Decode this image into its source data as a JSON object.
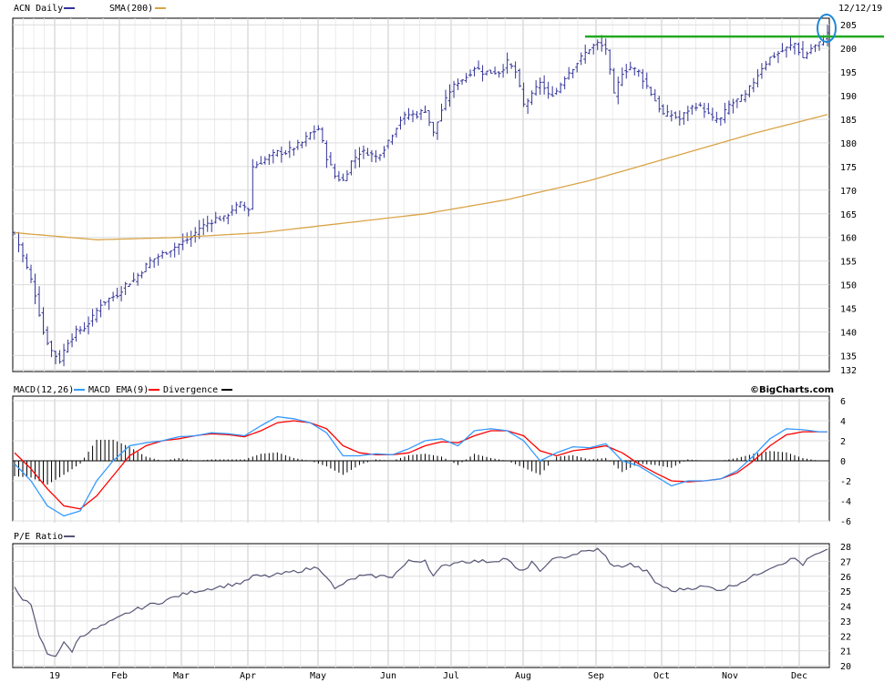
{
  "chart_data": [
    {
      "type": "ohlc",
      "legend": [
        {
          "label": "ACN Daily",
          "color": "#333399"
        },
        {
          "label": "SMA(200)",
          "color": "#d9a447"
        }
      ],
      "date_label": "12/12/19",
      "ylim": [
        132,
        206
      ],
      "yticks": [
        132,
        135,
        140,
        145,
        150,
        155,
        160,
        165,
        170,
        175,
        180,
        185,
        190,
        195,
        200,
        205
      ],
      "months": [
        "19",
        "Feb",
        "Mar",
        "Apr",
        "May",
        "Jun",
        "Jul",
        "Aug",
        "Sep",
        "Oct",
        "Nov",
        "Dec"
      ],
      "month_positions": [
        0,
        1,
        2,
        3,
        4,
        5,
        6,
        7,
        8,
        9,
        10,
        11
      ],
      "close_anchors": [
        [
          0,
          161
        ],
        [
          2,
          156
        ],
        [
          4,
          151
        ],
        [
          5,
          148
        ],
        [
          7,
          140
        ],
        [
          9,
          136
        ],
        [
          11,
          134
        ],
        [
          13,
          138
        ],
        [
          15,
          140
        ],
        [
          17,
          141
        ],
        [
          19,
          143
        ],
        [
          21,
          146
        ],
        [
          23,
          147
        ],
        [
          25,
          148
        ],
        [
          27,
          150
        ],
        [
          29,
          151
        ],
        [
          31,
          153
        ],
        [
          33,
          155
        ],
        [
          35,
          156
        ],
        [
          37,
          157
        ],
        [
          39,
          158
        ],
        [
          41,
          159
        ],
        [
          43,
          160
        ],
        [
          45,
          162
        ],
        [
          47,
          163
        ],
        [
          49,
          164
        ],
        [
          51,
          164
        ],
        [
          53,
          166
        ],
        [
          55,
          167
        ],
        [
          57,
          166
        ],
        [
          58,
          175
        ],
        [
          60,
          176
        ],
        [
          62,
          177
        ],
        [
          64,
          178
        ],
        [
          66,
          178
        ],
        [
          68,
          179
        ],
        [
          70,
          180
        ],
        [
          72,
          182
        ],
        [
          74,
          183
        ],
        [
          76,
          177
        ],
        [
          78,
          173
        ],
        [
          80,
          172
        ],
        [
          82,
          176
        ],
        [
          84,
          178
        ],
        [
          86,
          178
        ],
        [
          88,
          177
        ],
        [
          90,
          179
        ],
        [
          92,
          182
        ],
        [
          94,
          185
        ],
        [
          96,
          186
        ],
        [
          98,
          186
        ],
        [
          100,
          187
        ],
        [
          102,
          182
        ],
        [
          104,
          187
        ],
        [
          106,
          191
        ],
        [
          108,
          193
        ],
        [
          110,
          194
        ],
        [
          112,
          196
        ],
        [
          114,
          195
        ],
        [
          116,
          195
        ],
        [
          118,
          195
        ],
        [
          120,
          197
        ],
        [
          122,
          195
        ],
        [
          124,
          188
        ],
        [
          126,
          190
        ],
        [
          128,
          193
        ],
        [
          130,
          190
        ],
        [
          132,
          191
        ],
        [
          134,
          194
        ],
        [
          136,
          196
        ],
        [
          138,
          198
        ],
        [
          140,
          200
        ],
        [
          142,
          201
        ],
        [
          144,
          200
        ],
        [
          146,
          190
        ],
        [
          148,
          195
        ],
        [
          150,
          196
        ],
        [
          152,
          195
        ],
        [
          154,
          192
        ],
        [
          156,
          189
        ],
        [
          158,
          186
        ],
        [
          160,
          186
        ],
        [
          162,
          185
        ],
        [
          164,
          187
        ],
        [
          166,
          188
        ],
        [
          168,
          187
        ],
        [
          170,
          185
        ],
        [
          172,
          185
        ],
        [
          174,
          188
        ],
        [
          176,
          189
        ],
        [
          178,
          190
        ],
        [
          180,
          193
        ],
        [
          182,
          196
        ],
        [
          184,
          198
        ],
        [
          186,
          199
        ],
        [
          188,
          200
        ],
        [
          190,
          201
        ],
        [
          192,
          198
        ],
        [
          194,
          200
        ],
        [
          196,
          201
        ],
        [
          198,
          203
        ]
      ],
      "sma_anchors": [
        [
          0,
          161
        ],
        [
          20,
          159.5
        ],
        [
          40,
          160
        ],
        [
          60,
          161
        ],
        [
          80,
          163
        ],
        [
          100,
          165
        ],
        [
          120,
          168
        ],
        [
          140,
          172
        ],
        [
          160,
          177
        ],
        [
          180,
          182
        ],
        [
          198,
          186
        ]
      ],
      "resistance_level": 202.5,
      "annotation": "circled latest bar"
    },
    {
      "type": "macd",
      "legend": [
        {
          "label": "MACD(12,26)",
          "color": "#3399ff"
        },
        {
          "label": "MACD EMA(9)",
          "color": "#ff0000"
        },
        {
          "label": "Divergence",
          "color": "#000000"
        }
      ],
      "brand": "©BigCharts.com",
      "ylim": [
        -6,
        6
      ],
      "yticks": [
        -6,
        -4,
        -2,
        0,
        2,
        4,
        6
      ],
      "macd_anchors": [
        [
          0,
          -0.3
        ],
        [
          4,
          -2
        ],
        [
          8,
          -4.5
        ],
        [
          12,
          -5.5
        ],
        [
          16,
          -5
        ],
        [
          20,
          -2
        ],
        [
          24,
          0
        ],
        [
          28,
          1.5
        ],
        [
          32,
          1.8
        ],
        [
          36,
          2
        ],
        [
          40,
          2.4
        ],
        [
          44,
          2.5
        ],
        [
          48,
          2.8
        ],
        [
          52,
          2.7
        ],
        [
          56,
          2.5
        ],
        [
          60,
          3.5
        ],
        [
          64,
          4.4
        ],
        [
          68,
          4.2
        ],
        [
          72,
          3.8
        ],
        [
          76,
          2.8
        ],
        [
          80,
          0.5
        ],
        [
          84,
          0.5
        ],
        [
          88,
          0.7
        ],
        [
          92,
          0.6
        ],
        [
          96,
          1.2
        ],
        [
          100,
          2
        ],
        [
          104,
          2.2
        ],
        [
          108,
          1.5
        ],
        [
          112,
          3
        ],
        [
          116,
          3.2
        ],
        [
          120,
          3
        ],
        [
          124,
          2
        ],
        [
          128,
          0
        ],
        [
          132,
          0.8
        ],
        [
          136,
          1.4
        ],
        [
          140,
          1.3
        ],
        [
          144,
          1.7
        ],
        [
          148,
          0
        ],
        [
          152,
          -0.5
        ],
        [
          156,
          -1.5
        ],
        [
          160,
          -2.5
        ],
        [
          164,
          -2
        ],
        [
          168,
          -2
        ],
        [
          172,
          -1.8
        ],
        [
          176,
          -1
        ],
        [
          180,
          0.5
        ],
        [
          184,
          2.2
        ],
        [
          188,
          3.2
        ],
        [
          192,
          3.1
        ],
        [
          196,
          2.9
        ],
        [
          198,
          2.9
        ]
      ],
      "signal_anchors": [
        [
          0,
          0.8
        ],
        [
          4,
          -0.8
        ],
        [
          8,
          -2.8
        ],
        [
          12,
          -4.5
        ],
        [
          16,
          -4.8
        ],
        [
          20,
          -3.5
        ],
        [
          24,
          -1.5
        ],
        [
          28,
          0.5
        ],
        [
          32,
          1.5
        ],
        [
          36,
          2
        ],
        [
          40,
          2.2
        ],
        [
          44,
          2.5
        ],
        [
          48,
          2.7
        ],
        [
          52,
          2.6
        ],
        [
          56,
          2.4
        ],
        [
          60,
          3
        ],
        [
          64,
          3.8
        ],
        [
          68,
          4
        ],
        [
          72,
          3.8
        ],
        [
          76,
          3.2
        ],
        [
          80,
          1.5
        ],
        [
          84,
          0.8
        ],
        [
          88,
          0.6
        ],
        [
          92,
          0.6
        ],
        [
          96,
          0.8
        ],
        [
          100,
          1.5
        ],
        [
          104,
          1.9
        ],
        [
          108,
          1.8
        ],
        [
          112,
          2.5
        ],
        [
          116,
          3
        ],
        [
          120,
          3
        ],
        [
          124,
          2.5
        ],
        [
          128,
          1
        ],
        [
          132,
          0.5
        ],
        [
          136,
          1
        ],
        [
          140,
          1.2
        ],
        [
          144,
          1.5
        ],
        [
          148,
          0.8
        ],
        [
          152,
          -0.3
        ],
        [
          156,
          -1.2
        ],
        [
          160,
          -2
        ],
        [
          164,
          -2.1
        ],
        [
          168,
          -2
        ],
        [
          172,
          -1.8
        ],
        [
          176,
          -1.2
        ],
        [
          180,
          0
        ],
        [
          184,
          1.5
        ],
        [
          188,
          2.6
        ],
        [
          192,
          2.9
        ],
        [
          196,
          2.9
        ],
        [
          198,
          2.9
        ]
      ]
    },
    {
      "type": "line",
      "legend": [
        {
          "label": "P/E Ratio",
          "color": "#555577"
        }
      ],
      "ylim": [
        20,
        28
      ],
      "yticks": [
        20,
        21,
        22,
        23,
        24,
        25,
        26,
        27,
        28
      ],
      "pe_anchors": [
        [
          0,
          25.3
        ],
        [
          2,
          24.5
        ],
        [
          4,
          24
        ],
        [
          6,
          22
        ],
        [
          8,
          20.8
        ],
        [
          10,
          20.7
        ],
        [
          12,
          21.5
        ],
        [
          14,
          21
        ],
        [
          16,
          22
        ],
        [
          20,
          22.5
        ],
        [
          24,
          23
        ],
        [
          28,
          23.6
        ],
        [
          32,
          24
        ],
        [
          36,
          24.3
        ],
        [
          40,
          24.7
        ],
        [
          44,
          25
        ],
        [
          48,
          25.2
        ],
        [
          52,
          25.4
        ],
        [
          56,
          25.6
        ],
        [
          58,
          26
        ],
        [
          62,
          26
        ],
        [
          66,
          26.2
        ],
        [
          70,
          26.4
        ],
        [
          74,
          26.6
        ],
        [
          76,
          26
        ],
        [
          78,
          25.1
        ],
        [
          80,
          25.5
        ],
        [
          84,
          26
        ],
        [
          88,
          26
        ],
        [
          92,
          26
        ],
        [
          94,
          26.5
        ],
        [
          96,
          27
        ],
        [
          98,
          27
        ],
        [
          100,
          27.1
        ],
        [
          102,
          26
        ],
        [
          104,
          26.6
        ],
        [
          108,
          27
        ],
        [
          112,
          27
        ],
        [
          116,
          27
        ],
        [
          120,
          27.2
        ],
        [
          122,
          26.5
        ],
        [
          124,
          26.3
        ],
        [
          126,
          27
        ],
        [
          128,
          26.2
        ],
        [
          130,
          27
        ],
        [
          134,
          27.3
        ],
        [
          138,
          27.6
        ],
        [
          142,
          27.8
        ],
        [
          144,
          27.3
        ],
        [
          146,
          26.6
        ],
        [
          150,
          26.8
        ],
        [
          154,
          26.3
        ],
        [
          156,
          25.6
        ],
        [
          160,
          25
        ],
        [
          164,
          25.2
        ],
        [
          168,
          25.3
        ],
        [
          172,
          25.1
        ],
        [
          176,
          25.5
        ],
        [
          180,
          26
        ],
        [
          184,
          26.6
        ],
        [
          188,
          27
        ],
        [
          190,
          27.2
        ],
        [
          192,
          26.8
        ],
        [
          194,
          27.3
        ],
        [
          196,
          27.5
        ],
        [
          198,
          27.7
        ]
      ]
    }
  ]
}
